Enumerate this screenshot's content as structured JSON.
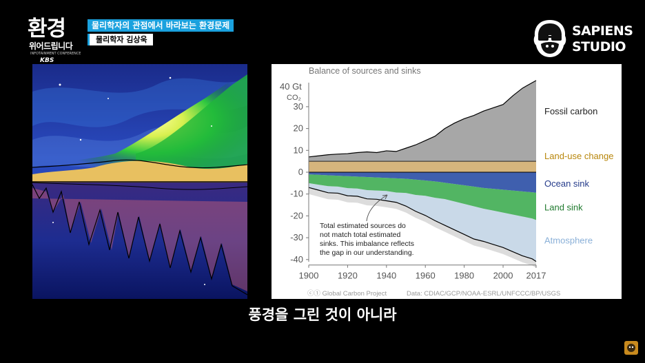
{
  "overlay": {
    "show_logo_line1": "환경",
    "show_logo_line2": "위어드립니다",
    "show_logo_small": "INFOTAINMENT CONFERENCE",
    "broadcaster": "KBS",
    "caption_title": "물리학자의 관점에서 바라보는 환경문제",
    "caption_speaker": "물리학자 김상욱",
    "studio_logo_line1": "SAPIENS",
    "studio_logo_line2": "STUDIO",
    "subtitle": "풍경을 그린 것이 아니라"
  },
  "colors": {
    "caption_accent": "#1aa1de",
    "fossil": "#a7a7a7",
    "land_use": "#d6b57d",
    "ocean": "#3f5fae",
    "land_sink": "#52b563",
    "atmosphere": "#c9d9e8",
    "imbalance": "#dcdcdc"
  },
  "chart_data": {
    "type": "area",
    "title": "Balance of sources and sinks",
    "ylabel_top": "40 Gt",
    "ylabel_unit": "CO₂",
    "ylim": [
      -42,
      42
    ],
    "yticks": [
      30,
      20,
      10,
      0,
      -10,
      -20,
      -30,
      -40
    ],
    "xlim": [
      1900,
      2017
    ],
    "xticks": [
      1900,
      1920,
      1940,
      1960,
      1980,
      2000,
      2017
    ],
    "grid": false,
    "x": [
      1900,
      1905,
      1910,
      1915,
      1920,
      1925,
      1930,
      1935,
      1940,
      1945,
      1950,
      1955,
      1960,
      1965,
      1970,
      1975,
      1980,
      1985,
      1990,
      1995,
      2000,
      2005,
      2010,
      2015,
      2017
    ],
    "series": [
      {
        "name": "Fossil carbon",
        "values": [
          2,
          2.5,
          3,
          3.3,
          3.5,
          4,
          4.3,
          4,
          4.8,
          4.5,
          6,
          7.5,
          9.5,
          11.5,
          15,
          17.5,
          19.5,
          21,
          23,
          24.5,
          26,
          30,
          33.5,
          36,
          37
        ]
      },
      {
        "name": "Land-use change",
        "values": [
          5,
          5,
          5,
          5,
          5,
          5,
          5,
          5,
          5,
          5,
          5,
          5,
          5,
          5,
          5,
          5,
          5,
          5,
          5,
          5,
          5,
          5,
          5,
          5,
          5
        ]
      },
      {
        "name": "Ocean sink",
        "values": [
          -1,
          -1.2,
          -1.4,
          -1.6,
          -1.8,
          -2,
          -2.2,
          -2.4,
          -2.6,
          -2.8,
          -3,
          -3.4,
          -3.8,
          -4.2,
          -4.8,
          -5.4,
          -6,
          -6.6,
          -7.2,
          -7.6,
          -8,
          -8.4,
          -8.8,
          -9.2,
          -9.4
        ]
      },
      {
        "name": "Land sink",
        "values": [
          -4,
          -4.5,
          -5,
          -5,
          -5.5,
          -5.5,
          -6,
          -6,
          -6,
          -6.5,
          -6.5,
          -7,
          -7,
          -7.5,
          -7.5,
          -8,
          -8.5,
          -9,
          -9.5,
          -10,
          -10.5,
          -11,
          -11.5,
          -12,
          -12.5
        ]
      },
      {
        "name": "Atmosphere",
        "values": [
          -2,
          -2.5,
          -3,
          -3,
          -3.5,
          -3.5,
          -4,
          -4,
          -4.5,
          -4.5,
          -6,
          -7.5,
          -9,
          -10.5,
          -12,
          -13,
          -14,
          -15,
          -15,
          -15.5,
          -16,
          -17,
          -18,
          -18.5,
          -19
        ]
      }
    ],
    "series_labels": [
      "Fossil carbon",
      "Land-use change",
      "Ocean sink",
      "Land sink",
      "Atmosphere"
    ],
    "annotation": [
      "Total estimated sources do",
      "not match total estimated",
      "sinks. This imbalance reflects",
      "the gap in our understanding."
    ],
    "source_left": "Global Carbon Project",
    "source_right": "Data: CDIAC/GCP/NOAA-ESRL/UNFCCC/BP/USGS"
  }
}
